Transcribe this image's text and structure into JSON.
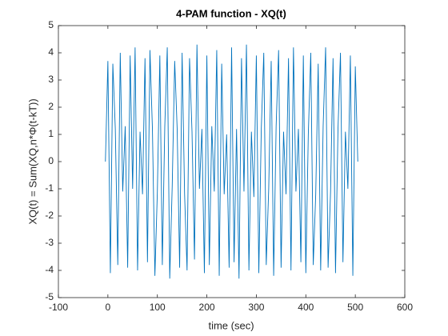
{
  "chart_data": {
    "type": "line",
    "title": "4-PAM function - XQ(t)",
    "xlabel": "time (sec)",
    "ylabel": "XQ(t) = Sum(XQ,n*Φ(t-kT))",
    "color": "#0072bd",
    "x": [
      -5,
      0,
      5,
      10,
      15,
      20,
      25,
      30,
      35,
      40,
      45,
      50,
      55,
      60,
      65,
      70,
      75,
      80,
      85,
      90,
      95,
      100,
      105,
      110,
      115,
      120,
      125,
      130,
      135,
      140,
      145,
      150,
      155,
      160,
      165,
      170,
      175,
      180,
      185,
      190,
      195,
      200,
      205,
      210,
      215,
      220,
      225,
      230,
      235,
      240,
      245,
      250,
      255,
      260,
      265,
      270,
      275,
      280,
      285,
      290,
      295,
      300,
      305,
      310,
      315,
      320,
      325,
      330,
      335,
      340,
      345,
      350,
      355,
      360,
      365,
      370,
      375,
      380,
      385,
      390,
      395,
      400,
      405,
      410,
      415,
      420,
      425,
      430,
      435,
      440,
      445,
      450,
      455,
      460,
      465,
      470,
      475,
      480,
      485,
      490,
      495,
      500,
      505
    ],
    "values": [
      0,
      3.7,
      -4.1,
      3.6,
      1.2,
      -3.8,
      4.0,
      -1.1,
      1.3,
      -3.9,
      3.9,
      -1.0,
      4.2,
      -4.0,
      1.1,
      -1.2,
      3.8,
      -3.7,
      4.1,
      1.2,
      -4.2,
      -1.1,
      3.9,
      -3.8,
      1.3,
      4.2,
      -4.3,
      -0.9,
      3.7,
      1.2,
      -3.9,
      4.0,
      -1.2,
      -4.0,
      3.8,
      1.1,
      -3.6,
      4.3,
      -1.0,
      1.2,
      -4.1,
      3.9,
      -3.8,
      1.3,
      -1.1,
      4.1,
      -4.2,
      3.6,
      -1.2,
      1.0,
      -3.9,
      4.2,
      -3.7,
      1.2,
      -4.3,
      3.8,
      -1.1,
      4.3,
      -4.0,
      1.1,
      -1.3,
      3.9,
      -4.1,
      1.2,
      4.0,
      -3.8,
      -1.0,
      3.7,
      -4.2,
      1.3,
      4.1,
      -3.9,
      1.1,
      -1.2,
      3.8,
      -4.0,
      4.2,
      -1.1,
      1.2,
      -3.7,
      3.9,
      -4.1,
      1.0,
      4.0,
      -3.8,
      -1.2,
      3.6,
      -4.0,
      1.3,
      4.2,
      -3.9,
      -1.1,
      3.8,
      -4.1,
      1.2,
      4.0,
      -3.7,
      1.1,
      -1.0,
      3.9,
      -4.2,
      3.5,
      0
    ],
    "xlim": [
      -100,
      600
    ],
    "xticks": [
      -100,
      0,
      100,
      200,
      300,
      400,
      500,
      600
    ],
    "ylim": [
      -5,
      5
    ],
    "yticks": [
      -5,
      -4,
      -3,
      -2,
      -1,
      0,
      1,
      2,
      3,
      4,
      5
    ]
  }
}
